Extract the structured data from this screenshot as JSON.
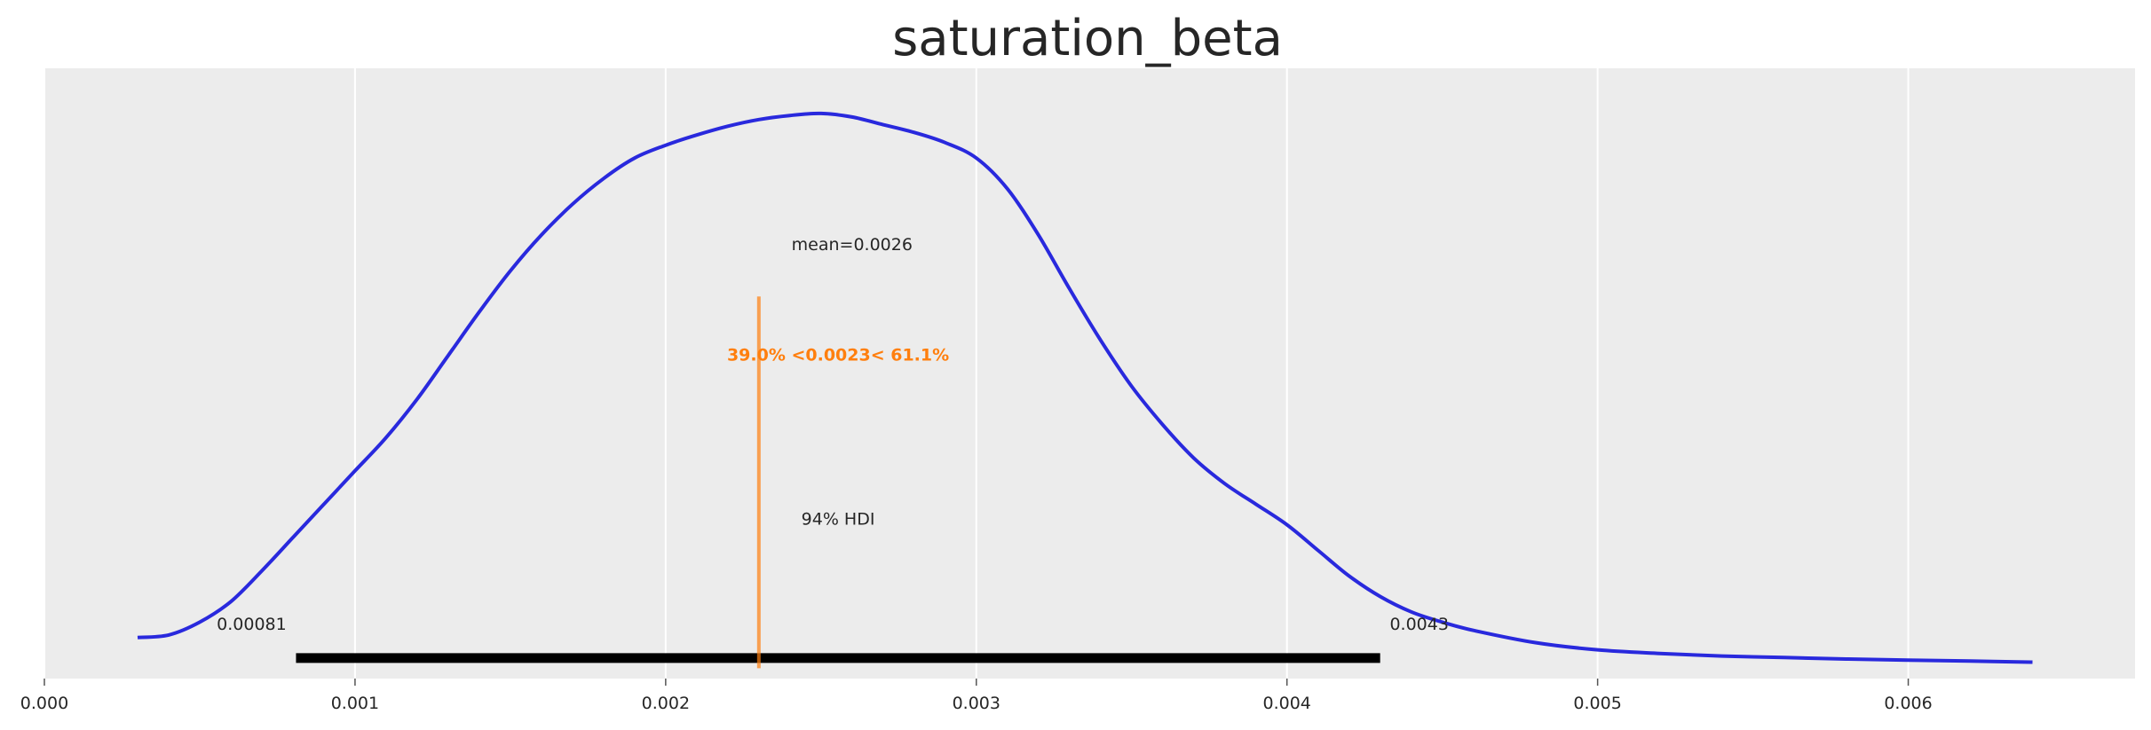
{
  "chart_data": {
    "type": "area",
    "title": "saturation_beta",
    "xlabel": "",
    "ylabel": "",
    "xlim": [
      0.0,
      0.00673
    ],
    "xticks": [
      0.0,
      0.001,
      0.002,
      0.003,
      0.004,
      0.005,
      0.006
    ],
    "xtick_labels": [
      "0.000",
      "0.001",
      "0.002",
      "0.003",
      "0.004",
      "0.005",
      "0.006"
    ],
    "grid": true,
    "density": {
      "x": [
        0.0003,
        0.0004,
        0.0005,
        0.0006,
        0.0007,
        0.0008,
        0.0009,
        0.001,
        0.0011,
        0.0012,
        0.0013,
        0.0014,
        0.0015,
        0.0016,
        0.0017,
        0.0018,
        0.0019,
        0.002,
        0.0021,
        0.0022,
        0.0023,
        0.0024,
        0.0025,
        0.0026,
        0.0027,
        0.0028,
        0.0029,
        0.003,
        0.0031,
        0.0032,
        0.0033,
        0.0034,
        0.0035,
        0.0036,
        0.0037,
        0.0038,
        0.0039,
        0.004,
        0.0041,
        0.0042,
        0.0043,
        0.0044,
        0.0045,
        0.0046,
        0.0048,
        0.005,
        0.0052,
        0.0054,
        0.0056,
        0.0058,
        0.006,
        0.0062,
        0.0064
      ],
      "y": [
        0.04,
        0.045,
        0.07,
        0.11,
        0.17,
        0.235,
        0.3,
        0.365,
        0.43,
        0.505,
        0.59,
        0.675,
        0.755,
        0.825,
        0.885,
        0.935,
        0.975,
        1.0,
        1.02,
        1.037,
        1.05,
        1.058,
        1.062,
        1.055,
        1.04,
        1.025,
        1.005,
        0.975,
        0.915,
        0.825,
        0.72,
        0.62,
        0.53,
        0.455,
        0.39,
        0.34,
        0.3,
        0.26,
        0.21,
        0.16,
        0.12,
        0.09,
        0.07,
        0.054,
        0.03,
        0.016,
        0.009,
        0.004,
        0.001,
        -0.002,
        -0.004,
        -0.006,
        -0.008
      ],
      "color": "#2929dd"
    },
    "ylim": [
      -0.04,
      1.15
    ],
    "mean": {
      "value": 0.0026,
      "label": "mean=0.0026"
    },
    "hdi": {
      "low": 0.00081,
      "high": 0.0043,
      "label": "94% HDI",
      "low_label": "0.00081",
      "high_label": "0.0043"
    },
    "ref_val": {
      "value": 0.0023,
      "label": "39.0% <0.0023< 61.1%",
      "color": "#ff7f0e"
    }
  }
}
